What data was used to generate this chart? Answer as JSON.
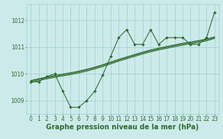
{
  "background_color": "#cceaea",
  "grid_color": "#99cccc",
  "line_color": "#2d6a2d",
  "marker_color": "#2d6a2d",
  "xlabel": "Graphe pression niveau de la mer (hPa)",
  "xlabel_fontsize": 7,
  "tick_fontsize": 5.5,
  "ylim": [
    1008.5,
    1012.6
  ],
  "xlim": [
    -0.5,
    23.5
  ],
  "yticks": [
    1009,
    1010,
    1011,
    1012
  ],
  "xticks": [
    0,
    1,
    2,
    3,
    4,
    5,
    6,
    7,
    8,
    9,
    10,
    11,
    12,
    13,
    14,
    15,
    16,
    17,
    18,
    19,
    20,
    21,
    22,
    23
  ],
  "x": [
    0,
    1,
    2,
    3,
    4,
    5,
    6,
    7,
    8,
    9,
    10,
    11,
    12,
    13,
    14,
    15,
    16,
    17,
    18,
    19,
    20,
    21,
    22,
    23
  ],
  "values_main": [
    1009.7,
    1009.7,
    1009.9,
    1010.0,
    1009.35,
    1008.75,
    1008.75,
    1009.0,
    1009.35,
    1009.95,
    1010.65,
    1011.35,
    1011.65,
    1011.1,
    1011.1,
    1011.65,
    1011.1,
    1011.35,
    1011.35,
    1011.35,
    1011.1,
    1011.1,
    1011.35,
    1012.3
  ],
  "values_smooth1": [
    1009.75,
    1009.82,
    1009.88,
    1009.94,
    1009.99,
    1010.04,
    1010.1,
    1010.17,
    1010.25,
    1010.34,
    1010.44,
    1010.54,
    1010.63,
    1010.72,
    1010.81,
    1010.89,
    1010.96,
    1011.02,
    1011.08,
    1011.14,
    1011.19,
    1011.24,
    1011.3,
    1011.38
  ],
  "values_smooth2": [
    1009.72,
    1009.79,
    1009.85,
    1009.91,
    1009.96,
    1010.01,
    1010.07,
    1010.14,
    1010.22,
    1010.31,
    1010.41,
    1010.51,
    1010.6,
    1010.69,
    1010.78,
    1010.86,
    1010.93,
    1010.99,
    1011.05,
    1011.11,
    1011.16,
    1011.21,
    1011.27,
    1011.35
  ],
  "values_smooth3": [
    1009.68,
    1009.75,
    1009.81,
    1009.87,
    1009.92,
    1009.97,
    1010.03,
    1010.1,
    1010.18,
    1010.27,
    1010.37,
    1010.47,
    1010.56,
    1010.65,
    1010.74,
    1010.82,
    1010.89,
    1010.95,
    1011.01,
    1011.07,
    1011.12,
    1011.17,
    1011.23,
    1011.32
  ]
}
